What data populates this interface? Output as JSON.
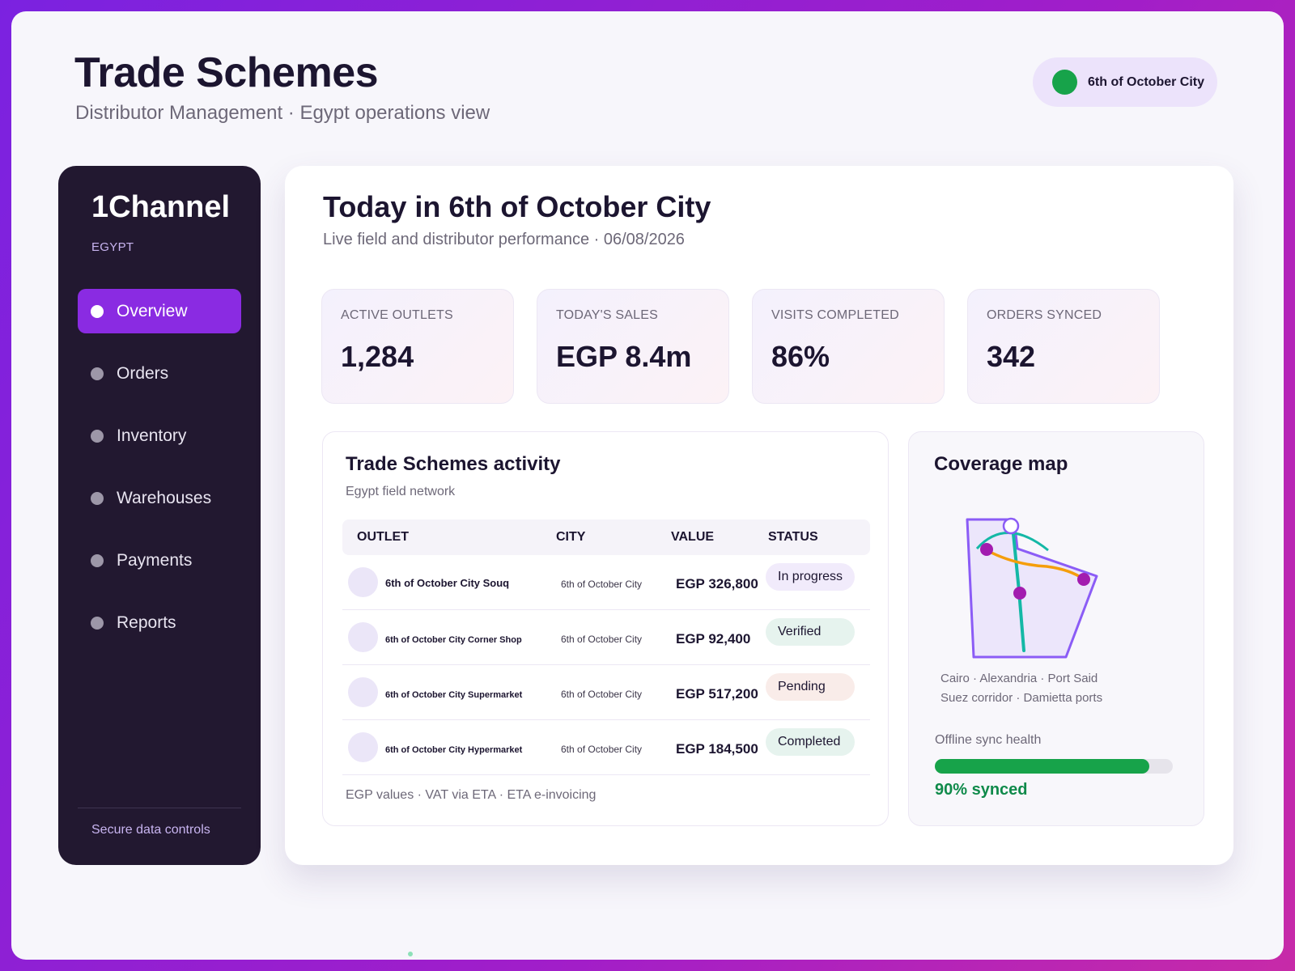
{
  "header": {
    "title": "Trade Schemes",
    "subtitle": "Distributor Management · Egypt operations view",
    "city_selector": "6th of October City"
  },
  "sidebar": {
    "brand": "1Channel",
    "country": "EGYPT",
    "items": [
      {
        "label": "Overview",
        "active": true
      },
      {
        "label": "Orders"
      },
      {
        "label": "Inventory"
      },
      {
        "label": "Warehouses"
      },
      {
        "label": "Payments"
      },
      {
        "label": "Reports"
      }
    ],
    "footer_link": "Secure data controls"
  },
  "main": {
    "title": "Today in 6th of October City",
    "subtitle": "Live field and distributor performance · 06/08/2026",
    "kpis": [
      {
        "label": "ACTIVE OUTLETS",
        "value": "1,284"
      },
      {
        "label": "TODAY'S SALES",
        "value": "EGP 8.4m"
      },
      {
        "label": "VISITS COMPLETED",
        "value": "86%"
      },
      {
        "label": "ORDERS SYNCED",
        "value": "342"
      }
    ]
  },
  "activity": {
    "title": "Trade Schemes activity",
    "subtitle": "Egypt field network",
    "columns": [
      "OUTLET",
      "CITY",
      "VALUE",
      "STATUS"
    ],
    "rows": [
      {
        "outlet": "6th of October City Souq",
        "city": "6th of October City",
        "value": "EGP 326,800",
        "status": "In progress"
      },
      {
        "outlet": "6th of October City Corner Shop",
        "city": "6th of October City",
        "value": "EGP 92,400",
        "status": "Verified"
      },
      {
        "outlet": "6th of October City Supermarket",
        "city": "6th of October City",
        "value": "EGP 517,200",
        "status": "Pending"
      },
      {
        "outlet": "6th of October City Hypermarket",
        "city": "6th of October City",
        "value": "EGP 184,500",
        "status": "Completed"
      }
    ],
    "footnote": "EGP values · VAT via ETA · ETA e-invoicing"
  },
  "coverage": {
    "title": "Coverage map",
    "caption_line1": "Cairo · Alexandria · Port Said",
    "caption_line2": "Suez corridor · Damietta ports",
    "sync_label": "Offline sync health",
    "sync_fraction": 0.9,
    "sync_value": "90% synced"
  },
  "colors": {
    "accent": "#8a2be2",
    "success": "#17a34a",
    "status_in_progress": "#f1ebfb",
    "status_verified": "#e6f3ee",
    "status_pending": "#f9ece9",
    "status_completed": "#e6f3ee"
  }
}
